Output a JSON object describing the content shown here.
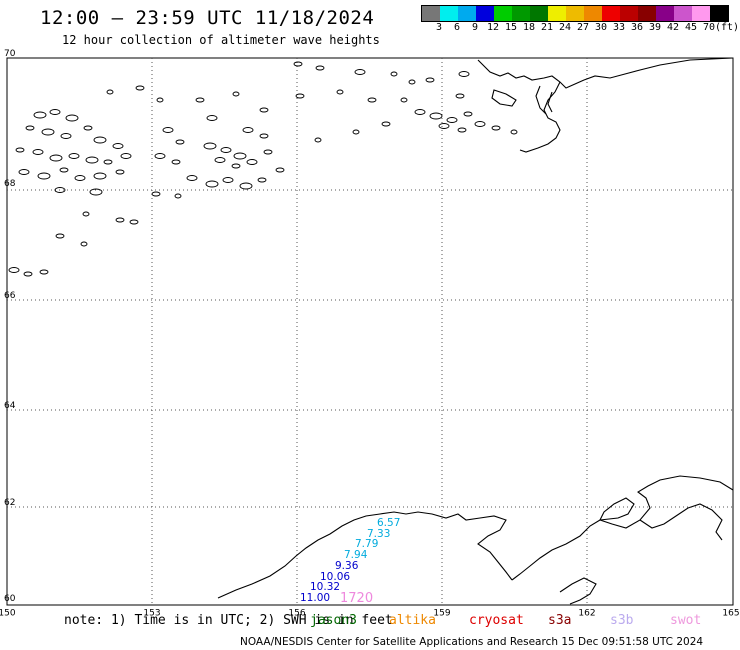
{
  "title": "12:00 – 23:59 UTC 11/18/2024",
  "subtitle": "12 hour collection of altimeter wave heights",
  "colorbar": {
    "colors": [
      "#777777",
      "#00eeee",
      "#00aaee",
      "#0000dd",
      "#00cc00",
      "#009900",
      "#007700",
      "#eeee00",
      "#eebb00",
      "#ee8800",
      "#ee0000",
      "#bb0000",
      "#880000",
      "#880088",
      "#cc55cc",
      "#ff99ee",
      "#000000"
    ],
    "labels": [
      "3",
      "6",
      "9",
      "12",
      "15",
      "18",
      "21",
      "24",
      "27",
      "30",
      "33",
      "36",
      "39",
      "42",
      "45",
      "70"
    ],
    "unit": "(ft)"
  },
  "axes": {
    "x_ticks": [
      "150",
      "153",
      "156",
      "159",
      "162",
      "165"
    ],
    "y_ticks": [
      "70",
      "68",
      "66",
      "64",
      "62",
      "60"
    ]
  },
  "observations": [
    {
      "value": "6.57",
      "color": "#00aadd"
    },
    {
      "value": "7.33",
      "color": "#00aadd"
    },
    {
      "value": "7.79",
      "color": "#00aadd"
    },
    {
      "value": "7.94",
      "color": "#00aadd"
    },
    {
      "value": "9.36",
      "color": "#0000cc"
    },
    {
      "value": "10.06",
      "color": "#0000cc"
    },
    {
      "value": "10.32",
      "color": "#0000cc"
    },
    {
      "value": "11.00",
      "color": "#0000cc"
    },
    {
      "value": "1720",
      "color": "#ee88dd"
    }
  ],
  "note": "note: 1) Time is in UTC; 2) SWH is in feet",
  "satellites": [
    {
      "name": "jason3",
      "color": "#006600"
    },
    {
      "name": "altika",
      "color": "#ee8800"
    },
    {
      "name": "cryosat",
      "color": "#dd0000"
    },
    {
      "name": "s3a",
      "color": "#880000"
    },
    {
      "name": "s3b",
      "color": "#bbaaee"
    },
    {
      "name": "swot",
      "color": "#ee99dd"
    }
  ],
  "credit": "NOAA/NESDIS Center for Satellite Applications and Research    15 Dec 09:51:58 UTC 2024"
}
